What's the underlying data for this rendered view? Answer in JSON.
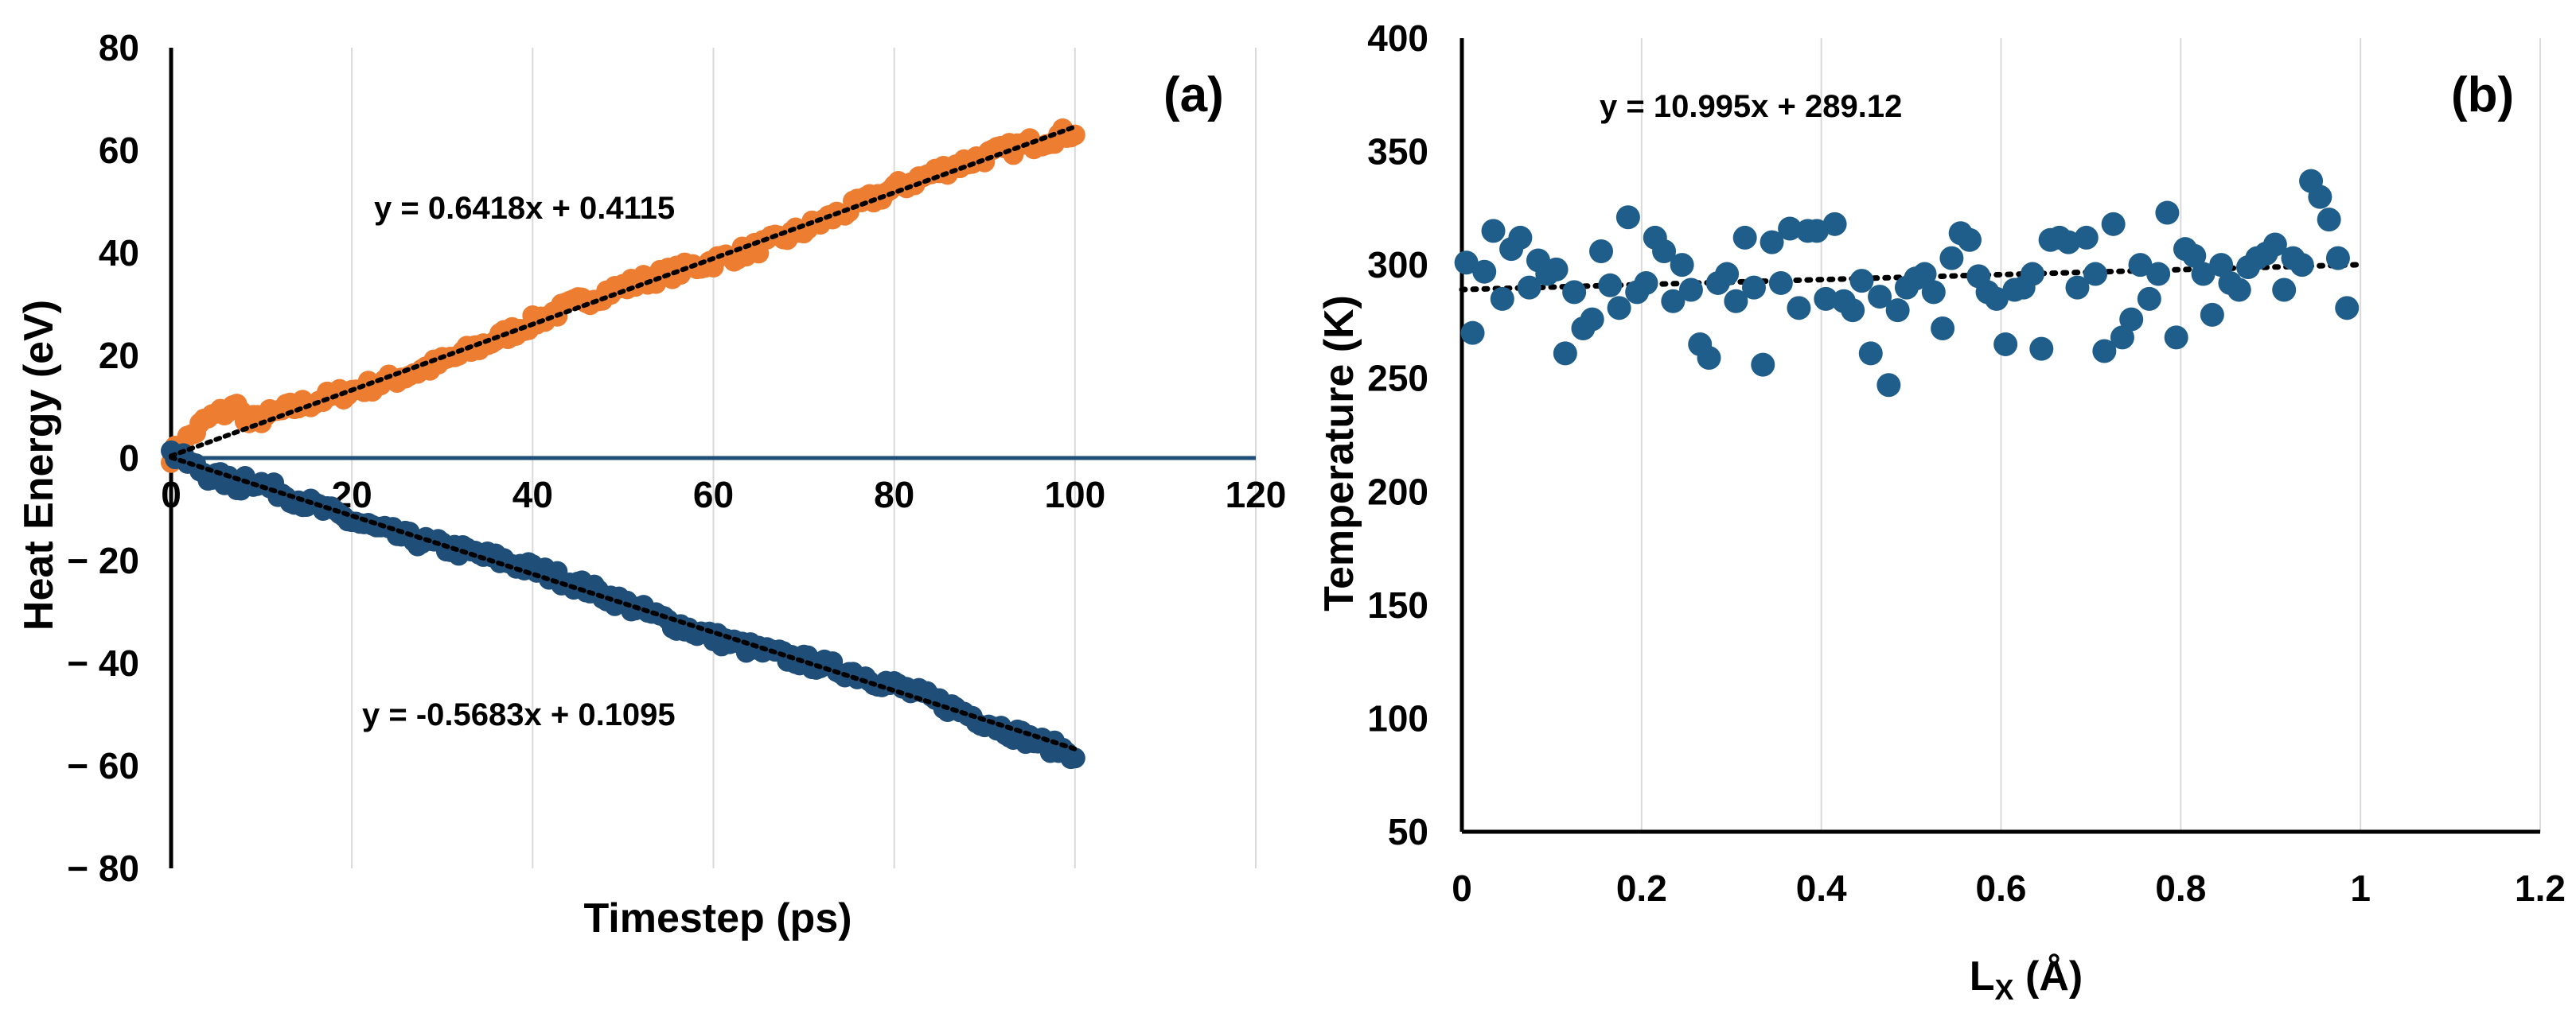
{
  "chart_data": [
    {
      "panel": "(a)",
      "type": "scatter",
      "xlabel": "Timestep (ps)",
      "ylabel": "Heat Energy (eV)",
      "xlim": [
        0,
        120
      ],
      "ylim": [
        -80,
        80
      ],
      "xticks": [
        "0",
        "20",
        "40",
        "60",
        "80",
        "100",
        "120"
      ],
      "yticks": [
        "80",
        "60",
        "40",
        "20",
        "0",
        "− 20",
        "− 40",
        "− 60",
        "− 80"
      ],
      "grid": "vertical",
      "x_range_data": [
        0,
        100
      ],
      "series": [
        {
          "color": "#ED7D31",
          "fit": {
            "slope": 0.6418,
            "intercept": 0.4115,
            "label": "y = 0.6418x + 0.4115"
          }
        },
        {
          "color": "#1F4E79",
          "fit": {
            "slope": -0.5683,
            "intercept": 0.1095,
            "label": "y = -0.5683x + 0.1095"
          }
        }
      ],
      "zero_line": {
        "y": 0,
        "x_end": 120,
        "color": "#1F4E79"
      }
    },
    {
      "panel": "(b)",
      "type": "scatter",
      "xlabel": "L",
      "xlabel_sub": "X",
      "xlabel_unit": " (Å)",
      "ylabel": "Temperature (K)",
      "xlim": [
        0,
        1.2
      ],
      "ylim": [
        50,
        400
      ],
      "xticks": [
        "0",
        "0.2",
        "0.4",
        "0.6",
        "0.8",
        "1",
        "1.2"
      ],
      "yticks": [
        "400",
        "350",
        "300",
        "250",
        "200",
        "150",
        "100",
        "50"
      ],
      "grid": "vertical",
      "fit": {
        "label": "y = 10.995x + 289.12",
        "slope": 10.995,
        "intercept": 289.12
      },
      "series": [
        {
          "color": "#1F5E8A",
          "points": [
            [
              0.005,
              301
            ],
            [
              0.012,
              270
            ],
            [
              0.025,
              297
            ],
            [
              0.035,
              315
            ],
            [
              0.045,
              285
            ],
            [
              0.055,
              307
            ],
            [
              0.065,
              312
            ],
            [
              0.075,
              290
            ],
            [
              0.085,
              302
            ],
            [
              0.095,
              296
            ],
            [
              0.105,
              298
            ],
            [
              0.115,
              261
            ],
            [
              0.125,
              288
            ],
            [
              0.135,
              272
            ],
            [
              0.145,
              276
            ],
            [
              0.155,
              306
            ],
            [
              0.165,
              291
            ],
            [
              0.175,
              281
            ],
            [
              0.185,
              321
            ],
            [
              0.195,
              288
            ],
            [
              0.205,
              292
            ],
            [
              0.215,
              312
            ],
            [
              0.225,
              306
            ],
            [
              0.235,
              284
            ],
            [
              0.245,
              300
            ],
            [
              0.255,
              289
            ],
            [
              0.265,
              265
            ],
            [
              0.275,
              259
            ],
            [
              0.285,
              292
            ],
            [
              0.295,
              296
            ],
            [
              0.305,
              284
            ],
            [
              0.315,
              312
            ],
            [
              0.325,
              290
            ],
            [
              0.335,
              256
            ],
            [
              0.345,
              310
            ],
            [
              0.355,
              292
            ],
            [
              0.365,
              316
            ],
            [
              0.375,
              281
            ],
            [
              0.385,
              315
            ],
            [
              0.395,
              315
            ],
            [
              0.405,
              285
            ],
            [
              0.415,
              318
            ],
            [
              0.425,
              284
            ],
            [
              0.435,
              280
            ],
            [
              0.445,
              293
            ],
            [
              0.455,
              261
            ],
            [
              0.465,
              286
            ],
            [
              0.475,
              247
            ],
            [
              0.485,
              280
            ],
            [
              0.495,
              290
            ],
            [
              0.505,
              294
            ],
            [
              0.515,
              296
            ],
            [
              0.525,
              288
            ],
            [
              0.535,
              272
            ],
            [
              0.545,
              303
            ],
            [
              0.555,
              314
            ],
            [
              0.565,
              311
            ],
            [
              0.575,
              295
            ],
            [
              0.585,
              288
            ],
            [
              0.595,
              285
            ],
            [
              0.605,
              265
            ],
            [
              0.615,
              289
            ],
            [
              0.625,
              290
            ],
            [
              0.635,
              296
            ],
            [
              0.645,
              263
            ],
            [
              0.655,
              311
            ],
            [
              0.665,
              312
            ],
            [
              0.675,
              310
            ],
            [
              0.685,
              290
            ],
            [
              0.695,
              312
            ],
            [
              0.705,
              296
            ],
            [
              0.715,
              262
            ],
            [
              0.725,
              318
            ],
            [
              0.735,
              268
            ],
            [
              0.745,
              276
            ],
            [
              0.755,
              300
            ],
            [
              0.765,
              285
            ],
            [
              0.775,
              296
            ],
            [
              0.785,
              323
            ],
            [
              0.795,
              268
            ],
            [
              0.805,
              307
            ],
            [
              0.815,
              304
            ],
            [
              0.825,
              296
            ],
            [
              0.835,
              278
            ],
            [
              0.845,
              300
            ],
            [
              0.855,
              292
            ],
            [
              0.865,
              289
            ],
            [
              0.875,
              299
            ],
            [
              0.885,
              303
            ],
            [
              0.895,
              305
            ],
            [
              0.905,
              309
            ],
            [
              0.915,
              289
            ],
            [
              0.925,
              303
            ],
            [
              0.935,
              300
            ],
            [
              0.945,
              337
            ],
            [
              0.955,
              330
            ],
            [
              0.965,
              320
            ],
            [
              0.975,
              303
            ],
            [
              0.985,
              281
            ]
          ]
        }
      ]
    }
  ]
}
